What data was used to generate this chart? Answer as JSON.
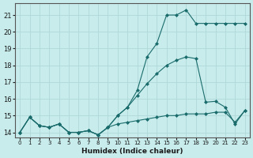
{
  "xlabel": "Humidex (Indice chaleur)",
  "bg_color": "#c8ecec",
  "grid_color": "#b0d8d8",
  "line_color": "#1a6b6b",
  "xlim": [
    -0.5,
    23.5
  ],
  "ylim": [
    13.7,
    21.7
  ],
  "xticks": [
    0,
    1,
    2,
    3,
    4,
    5,
    6,
    7,
    8,
    9,
    10,
    11,
    12,
    13,
    14,
    15,
    16,
    17,
    18,
    19,
    20,
    21,
    22,
    23
  ],
  "yticks": [
    14,
    15,
    16,
    17,
    18,
    19,
    20,
    21
  ],
  "line1_x": [
    0,
    1,
    2,
    3,
    4,
    5,
    6,
    7,
    8,
    9,
    10,
    11,
    12,
    13,
    14,
    15,
    16,
    17,
    18,
    19,
    20,
    21,
    22,
    23
  ],
  "line1_y": [
    14.0,
    14.9,
    14.4,
    14.3,
    14.5,
    14.0,
    14.0,
    14.1,
    13.85,
    14.3,
    14.5,
    14.6,
    14.7,
    14.8,
    14.9,
    15.0,
    15.0,
    15.1,
    15.1,
    15.1,
    15.2,
    15.2,
    14.6,
    15.3
  ],
  "line2_x": [
    0,
    1,
    2,
    3,
    4,
    5,
    6,
    7,
    8,
    9,
    10,
    11,
    12,
    13,
    14,
    15,
    16,
    17,
    18,
    19,
    20,
    21,
    22,
    23
  ],
  "line2_y": [
    14.0,
    14.9,
    14.4,
    14.3,
    14.5,
    14.0,
    14.0,
    14.1,
    13.85,
    14.3,
    15.0,
    15.5,
    16.2,
    16.9,
    17.5,
    18.0,
    18.3,
    18.5,
    18.4,
    15.8,
    15.85,
    15.5,
    14.5,
    15.3
  ],
  "line3_x": [
    0,
    1,
    2,
    3,
    4,
    5,
    6,
    7,
    8,
    9,
    10,
    11,
    12,
    13,
    14,
    15,
    16,
    17,
    18,
    19,
    20,
    21,
    22,
    23
  ],
  "line3_y": [
    14.0,
    14.9,
    14.4,
    14.3,
    14.5,
    14.0,
    14.0,
    14.1,
    13.85,
    14.3,
    15.0,
    15.5,
    16.5,
    18.5,
    19.3,
    21.0,
    21.0,
    21.3,
    20.5,
    20.5,
    20.5,
    20.5,
    20.5,
    20.5
  ]
}
